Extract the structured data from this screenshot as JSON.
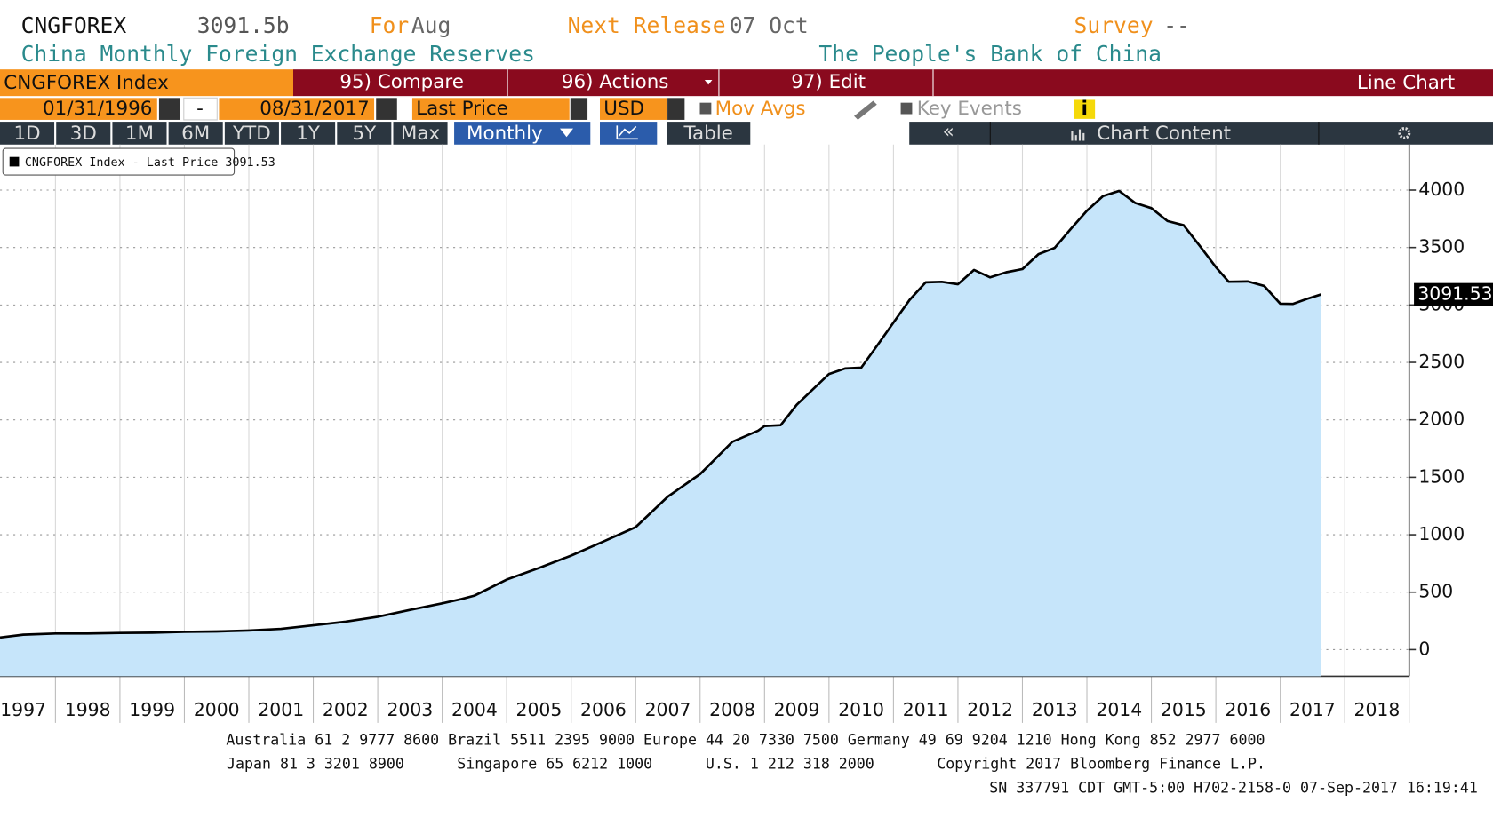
{
  "header": {
    "ticker": "CNGFOREX",
    "last": "3091.5b",
    "for_label": "For",
    "for_value": "Aug",
    "release_label": "Next Release",
    "release_value": "07 Oct",
    "survey_label": "Survey",
    "survey_value": "--",
    "description": "China Monthly Foreign Exchange Reserves",
    "source": "The People's Bank of China"
  },
  "menu": {
    "security": "CNGFOREX Index",
    "compare": "95) Compare",
    "actions": "96) Actions",
    "edit": "97) Edit",
    "chart_type": "Line Chart"
  },
  "controls": {
    "start_date": "01/31/1996",
    "separator": "-",
    "end_date": "08/31/2017",
    "field": "Last Price",
    "currency": "USD",
    "mov_avgs": "Mov Avgs",
    "key_events": "Key Events",
    "info": "i"
  },
  "ranges": [
    "1D",
    "3D",
    "1M",
    "6M",
    "YTD",
    "1Y",
    "5Y",
    "Max"
  ],
  "toolbar": {
    "period": "Monthly",
    "table": "Table",
    "back": "«",
    "content": "Chart Content"
  },
  "chart_data": {
    "type": "area",
    "legend": "CNGFOREX Index - Last Price 3091.53",
    "x_labels": [
      "1997",
      "1998",
      "1999",
      "2000",
      "2001",
      "2002",
      "2003",
      "2004",
      "2005",
      "2006",
      "2007",
      "2008",
      "2009",
      "2010",
      "2011",
      "2012",
      "2013",
      "2014",
      "2015",
      "2016",
      "2017",
      "2018"
    ],
    "xlim": [
      1997.14,
      2019
    ],
    "xticks": [
      1998,
      1999,
      2000,
      2001,
      2002,
      2003,
      2004,
      2005,
      2006,
      2007,
      2008,
      2009,
      2010,
      2011,
      2012,
      2013,
      2014,
      2015,
      2016,
      2017,
      2018,
      2019
    ],
    "ylim": [
      -232,
      4396
    ],
    "yticks": [
      0,
      500,
      1000,
      1500,
      2000,
      2500,
      3000,
      3500,
      4000
    ],
    "grid": true,
    "series": [
      {
        "name": "CNGFOREX Index",
        "color": "#000000",
        "fill": "#c6e5fa",
        "x": [
          1997.14,
          1997.5,
          1998.0,
          1998.5,
          1999.0,
          1999.5,
          2000.0,
          2000.5,
          2001.0,
          2001.5,
          2002.0,
          2002.5,
          2003.0,
          2003.5,
          2004.0,
          2004.3,
          2004.5,
          2005.0,
          2005.5,
          2006.0,
          2006.5,
          2007.0,
          2007.5,
          2008.0,
          2008.5,
          2008.9,
          2009.0,
          2009.25,
          2009.5,
          2010.0,
          2010.25,
          2010.5,
          2010.75,
          2011.0,
          2011.25,
          2011.5,
          2011.75,
          2012.0,
          2012.25,
          2012.5,
          2012.75,
          2013.0,
          2013.25,
          2013.5,
          2013.75,
          2014.0,
          2014.25,
          2014.5,
          2014.75,
          2015.0,
          2015.25,
          2015.5,
          2015.75,
          2016.0,
          2016.2,
          2016.5,
          2016.75,
          2017.0,
          2017.2,
          2017.42,
          2017.63
        ],
        "values": [
          105,
          130,
          140,
          140,
          145,
          147,
          155,
          158,
          166,
          180,
          212,
          243,
          286,
          346,
          403,
          440,
          470,
          610,
          711,
          819,
          941,
          1066,
          1332,
          1528,
          1809,
          1906,
          1946,
          1954,
          2132,
          2399,
          2447,
          2454,
          2648,
          2847,
          3044,
          3197,
          3201,
          3181,
          3305,
          3240,
          3285,
          3312,
          3442,
          3497,
          3662,
          3821,
          3948,
          3993,
          3888,
          3843,
          3730,
          3694,
          3514,
          3330,
          3202,
          3205,
          3166,
          3011,
          3009,
          3054,
          3091.53
        ]
      }
    ]
  },
  "footer": {
    "line1": "Australia 61 2 9777 8600 Brazil 5511 2395 9000 Europe 44 20 7330 7500 Germany 49 69 9204 1210 Hong Kong 852 2977 6000",
    "line2a": "Japan 81 3 3201 8900",
    "line2b": "Singapore 65 6212 1000",
    "line2c": "U.S. 1 212 318 2000",
    "line2d": "Copyright 2017 Bloomberg Finance L.P.",
    "line3": "SN 337791 CDT  GMT-5:00 H702-2158-0 07-Sep-2017 16:19:41"
  }
}
